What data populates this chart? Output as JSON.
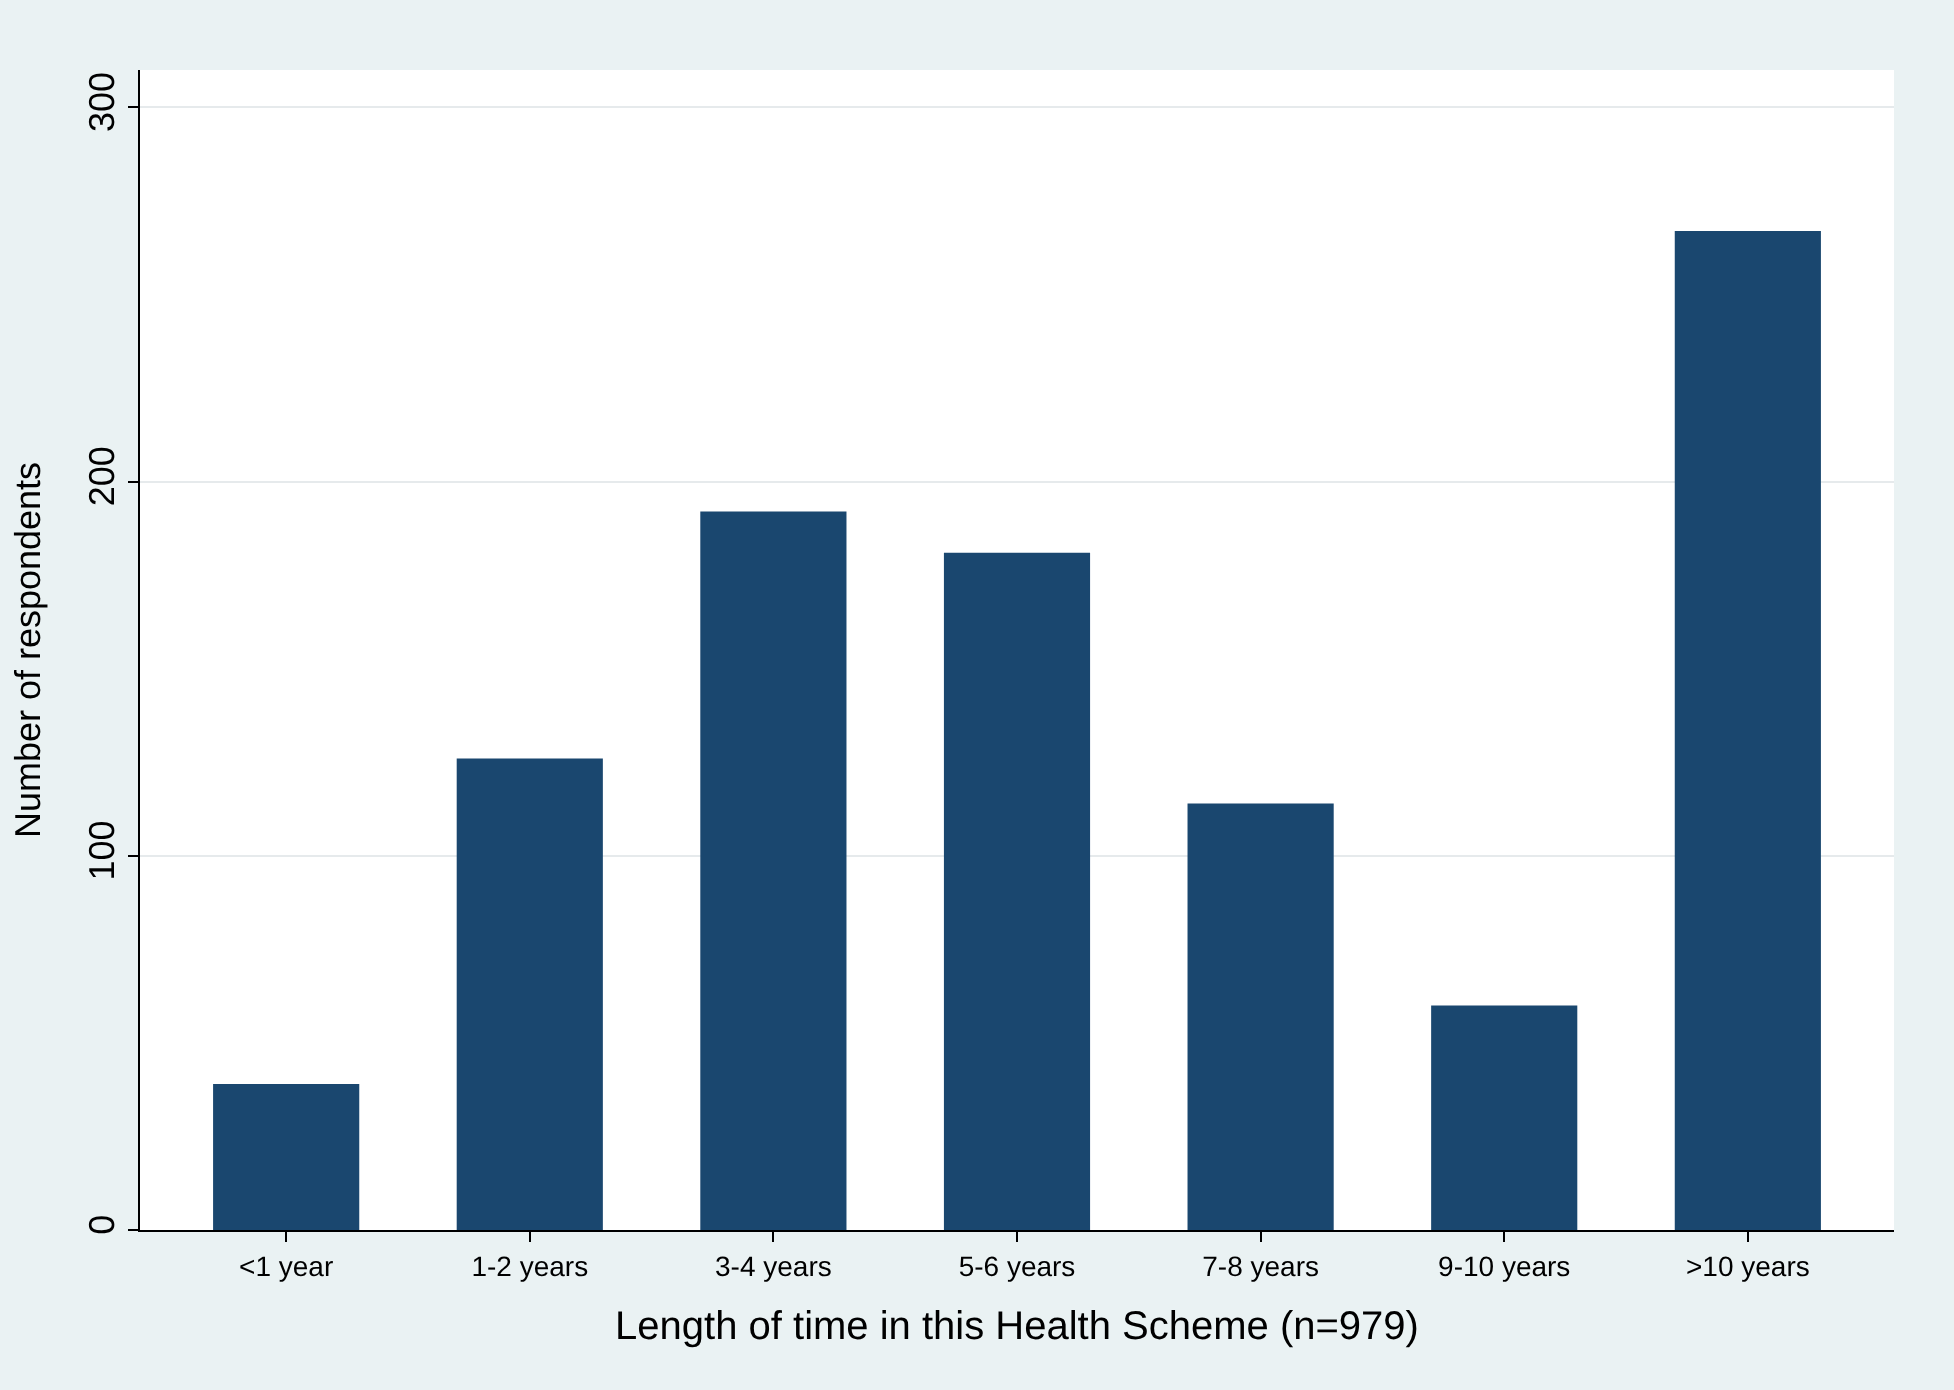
{
  "chart_data": {
    "type": "bar",
    "xlabel": "Length of time in this Health Scheme (n=979)",
    "ylabel": "Number of respondents",
    "categories": [
      "<1 year",
      "1-2 years",
      "3-4 years",
      "5-6 years",
      "7-8 years",
      "9-10 years",
      ">10 years"
    ],
    "values": [
      39,
      126,
      192,
      181,
      114,
      60,
      267
    ],
    "color": "#1a476f",
    "ylim": [
      0,
      310
    ],
    "yticks": [
      0,
      100,
      200,
      300
    ],
    "grid": "y"
  }
}
